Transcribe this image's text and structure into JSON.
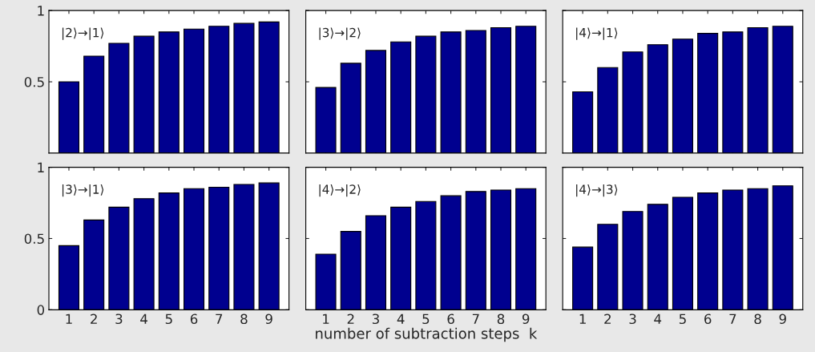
{
  "chart_data": [
    {
      "type": "bar",
      "categories": [
        "1",
        "2",
        "3",
        "4",
        "5",
        "6",
        "7",
        "8",
        "9"
      ],
      "values": [
        0.5,
        0.68,
        0.77,
        0.82,
        0.85,
        0.87,
        0.89,
        0.91,
        0.92
      ],
      "color": "#00008f",
      "ylim": [
        0,
        1
      ],
      "yticks": [
        0.5,
        1
      ],
      "annotations": [
        "|2⟩→|1⟩"
      ],
      "tick_labels": "y",
      "grid": false
    },
    {
      "type": "bar",
      "categories": [
        "1",
        "2",
        "3",
        "4",
        "5",
        "6",
        "7",
        "8",
        "9"
      ],
      "values": [
        0.46,
        0.63,
        0.72,
        0.78,
        0.82,
        0.85,
        0.86,
        0.88,
        0.89
      ],
      "color": "#00008f",
      "ylim": [
        0,
        1
      ],
      "yticks": [
        0.5,
        1
      ],
      "annotations": [
        "|3⟩→|2⟩"
      ],
      "tick_labels": false,
      "grid": false
    },
    {
      "type": "bar",
      "categories": [
        "1",
        "2",
        "3",
        "4",
        "5",
        "6",
        "7",
        "8",
        "9"
      ],
      "values": [
        0.43,
        0.6,
        0.71,
        0.76,
        0.8,
        0.84,
        0.85,
        0.88,
        0.89
      ],
      "color": "#00008f",
      "ylim": [
        0,
        1
      ],
      "yticks": [
        0.5,
        1
      ],
      "annotations": [
        "|4⟩→|1⟩"
      ],
      "tick_labels": false,
      "grid": false
    },
    {
      "type": "bar",
      "categories": [
        "1",
        "2",
        "3",
        "4",
        "5",
        "6",
        "7",
        "8",
        "9"
      ],
      "values": [
        0.45,
        0.63,
        0.72,
        0.78,
        0.82,
        0.85,
        0.86,
        0.88,
        0.89
      ],
      "color": "#00008f",
      "ylim": [
        0,
        1
      ],
      "yticks": [
        0,
        0.5,
        1
      ],
      "annotations": [
        "|3⟩→|1⟩"
      ],
      "grid": false
    },
    {
      "type": "bar",
      "categories": [
        "1",
        "2",
        "3",
        "4",
        "5",
        "6",
        "7",
        "8",
        "9"
      ],
      "values": [
        0.39,
        0.55,
        0.66,
        0.72,
        0.76,
        0.8,
        0.83,
        0.84,
        0.85
      ],
      "color": "#00008f",
      "ylim": [
        0,
        1
      ],
      "yticks": [
        0,
        0.5,
        1
      ],
      "annotations": [
        "|4⟩→|2⟩"
      ],
      "xlabel": "number of subtraction steps  k",
      "tick_labels": "x",
      "grid": false
    },
    {
      "type": "bar",
      "categories": [
        "1",
        "2",
        "3",
        "4",
        "5",
        "6",
        "7",
        "8",
        "9"
      ],
      "values": [
        0.44,
        0.6,
        0.69,
        0.74,
        0.79,
        0.82,
        0.84,
        0.85,
        0.87
      ],
      "color": "#00008f",
      "ylim": [
        0,
        1
      ],
      "yticks": [
        0,
        0.5,
        1
      ],
      "annotations": [
        "|4⟩→|3⟩"
      ],
      "tick_labels": "x",
      "grid": false
    }
  ]
}
